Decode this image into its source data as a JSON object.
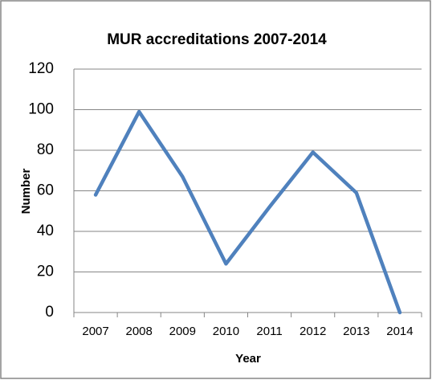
{
  "chart_data": {
    "type": "line",
    "title": "MUR accreditations 2007-2014",
    "x_label": "Year",
    "y_label": "Number",
    "categories": [
      "2007",
      "2008",
      "2009",
      "2010",
      "2011",
      "2012",
      "2013",
      "2014"
    ],
    "values": [
      58,
      99,
      67,
      24,
      52,
      79,
      59,
      0
    ],
    "color": "#4f81bd",
    "ylim": [
      0,
      120
    ],
    "yticks": [
      0,
      20,
      40,
      60,
      80,
      100,
      120
    ],
    "grid": true
  }
}
